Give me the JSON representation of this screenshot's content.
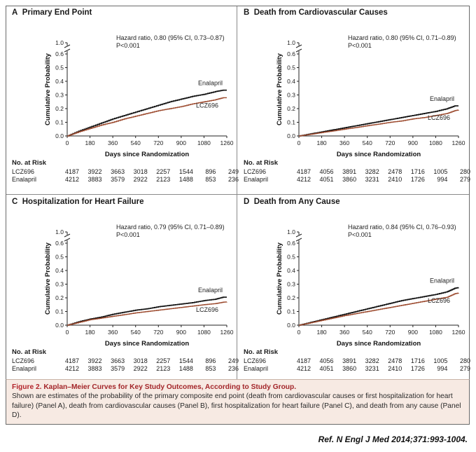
{
  "colors": {
    "enalapril": "#111111",
    "lcz696": "#9c4a2e",
    "caption_bg": "#f7eae3",
    "caption_title": "#b3242b"
  },
  "axes": {
    "ylabel": "Cumulative Probability",
    "xlabel": "Days since Randomization",
    "xticks": [
      "0",
      "180",
      "360",
      "540",
      "720",
      "900",
      "1080",
      "1260"
    ],
    "yticks": [
      "0.0",
      "0.1",
      "0.2",
      "0.3",
      "0.4",
      "0.5",
      "0.6",
      "1.0"
    ]
  },
  "risk_table": {
    "title": "No. at Risk",
    "rows": [
      "LCZ696",
      "Enalapril"
    ]
  },
  "panels": [
    {
      "letter": "A",
      "title": "Primary End Point",
      "hr_line1": "Hazard ratio, 0.80 (95% CI, 0.73–0.87)",
      "hr_line2": "P<0.001",
      "label_enalapril": "Enalapril",
      "label_lcz696": "LCZ696",
      "risk_lcz696": [
        "4187",
        "3922",
        "3663",
        "3018",
        "2257",
        "1544",
        "896",
        "249"
      ],
      "risk_enalapril": [
        "4212",
        "3883",
        "3579",
        "2922",
        "2123",
        "1488",
        "853",
        "236"
      ]
    },
    {
      "letter": "B",
      "title": "Death from Cardiovascular Causes",
      "hr_line1": "Hazard ratio, 0.80 (95% CI, 0.71–0.89)",
      "hr_line2": "P<0.001",
      "label_enalapril": "Enalapril",
      "label_lcz696": "LCZ696",
      "risk_lcz696": [
        "4187",
        "4056",
        "3891",
        "3282",
        "2478",
        "1716",
        "1005",
        "280"
      ],
      "risk_enalapril": [
        "4212",
        "4051",
        "3860",
        "3231",
        "2410",
        "1726",
        "994",
        "279"
      ]
    },
    {
      "letter": "C",
      "title": "Hospitalization for Heart Failure",
      "hr_line1": "Hazard ratio, 0.79 (95% CI, 0.71–0.89)",
      "hr_line2": "P<0.001",
      "label_enalapril": "Enalapril",
      "label_lcz696": "LCZ696",
      "risk_lcz696": [
        "4187",
        "3922",
        "3663",
        "3018",
        "2257",
        "1544",
        "896",
        "249"
      ],
      "risk_enalapril": [
        "4212",
        "3883",
        "3579",
        "2922",
        "2123",
        "1488",
        "853",
        "236"
      ]
    },
    {
      "letter": "D",
      "title": "Death from Any Cause",
      "hr_line1": "Hazard ratio, 0.84 (95% CI, 0.76–0.93)",
      "hr_line2": "P<0.001",
      "label_enalapril": "Enalapril",
      "label_lcz696": "LCZ696",
      "risk_lcz696": [
        "4187",
        "4056",
        "3891",
        "3282",
        "2478",
        "1716",
        "1005",
        "280"
      ],
      "risk_enalapril": [
        "4212",
        "4051",
        "3860",
        "3231",
        "2410",
        "1726",
        "994",
        "279"
      ]
    }
  ],
  "chart_data": [
    {
      "type": "line",
      "title": "A Primary End Point",
      "xlabel": "Days since Randomization",
      "ylabel": "Cumulative Probability",
      "xlim": [
        0,
        1260
      ],
      "ylim": [
        0,
        0.6
      ],
      "y_axis_break": true,
      "y_top_tick": 1.0,
      "x": [
        0,
        90,
        180,
        270,
        360,
        450,
        540,
        630,
        720,
        810,
        900,
        990,
        1080,
        1170,
        1230,
        1260
      ],
      "series": [
        {
          "name": "Enalapril",
          "values": [
            0,
            0.035,
            0.065,
            0.095,
            0.125,
            0.15,
            0.175,
            0.2,
            0.225,
            0.25,
            0.27,
            0.29,
            0.305,
            0.325,
            0.335,
            0.335
          ]
        },
        {
          "name": "LCZ696",
          "values": [
            0,
            0.03,
            0.055,
            0.08,
            0.1,
            0.125,
            0.145,
            0.165,
            0.185,
            0.2,
            0.215,
            0.235,
            0.25,
            0.265,
            0.28,
            0.28
          ]
        }
      ]
    },
    {
      "type": "line",
      "title": "B Death from Cardiovascular Causes",
      "xlabel": "Days since Randomization",
      "ylabel": "Cumulative Probability",
      "xlim": [
        0,
        1260
      ],
      "ylim": [
        0,
        0.6
      ],
      "y_axis_break": true,
      "y_top_tick": 1.0,
      "x": [
        0,
        90,
        180,
        270,
        360,
        450,
        540,
        630,
        720,
        810,
        900,
        990,
        1080,
        1170,
        1230,
        1260
      ],
      "series": [
        {
          "name": "Enalapril",
          "values": [
            0,
            0.015,
            0.03,
            0.045,
            0.06,
            0.075,
            0.09,
            0.105,
            0.12,
            0.135,
            0.15,
            0.165,
            0.18,
            0.2,
            0.22,
            0.22
          ]
        },
        {
          "name": "LCZ696",
          "values": [
            0,
            0.012,
            0.025,
            0.037,
            0.05,
            0.062,
            0.075,
            0.087,
            0.1,
            0.11,
            0.125,
            0.135,
            0.15,
            0.165,
            0.185,
            0.19
          ]
        }
      ]
    },
    {
      "type": "line",
      "title": "C Hospitalization for Heart Failure",
      "xlabel": "Days since Randomization",
      "ylabel": "Cumulative Probability",
      "xlim": [
        0,
        1260
      ],
      "ylim": [
        0,
        0.6
      ],
      "y_axis_break": true,
      "y_top_tick": 1.0,
      "x": [
        0,
        90,
        180,
        270,
        360,
        450,
        540,
        630,
        720,
        810,
        900,
        990,
        1080,
        1170,
        1230,
        1260
      ],
      "series": [
        {
          "name": "Enalapril",
          "values": [
            0,
            0.025,
            0.045,
            0.06,
            0.08,
            0.095,
            0.11,
            0.12,
            0.135,
            0.145,
            0.155,
            0.165,
            0.18,
            0.19,
            0.205,
            0.205
          ]
        },
        {
          "name": "LCZ696",
          "values": [
            0,
            0.02,
            0.04,
            0.052,
            0.065,
            0.077,
            0.09,
            0.1,
            0.11,
            0.12,
            0.13,
            0.14,
            0.15,
            0.158,
            0.168,
            0.17
          ]
        }
      ]
    },
    {
      "type": "line",
      "title": "D Death from Any Cause",
      "xlabel": "Days since Randomization",
      "ylabel": "Cumulative Probability",
      "xlim": [
        0,
        1260
      ],
      "ylim": [
        0,
        0.6
      ],
      "y_axis_break": true,
      "y_top_tick": 1.0,
      "x": [
        0,
        90,
        180,
        270,
        360,
        450,
        540,
        630,
        720,
        810,
        900,
        990,
        1080,
        1170,
        1230,
        1260
      ],
      "series": [
        {
          "name": "Enalapril",
          "values": [
            0,
            0.02,
            0.04,
            0.06,
            0.08,
            0.1,
            0.12,
            0.14,
            0.16,
            0.18,
            0.195,
            0.21,
            0.225,
            0.245,
            0.27,
            0.275
          ]
        },
        {
          "name": "LCZ696",
          "values": [
            0,
            0.017,
            0.035,
            0.052,
            0.07,
            0.085,
            0.1,
            0.115,
            0.13,
            0.145,
            0.16,
            0.175,
            0.19,
            0.205,
            0.23,
            0.235
          ]
        }
      ]
    }
  ],
  "caption": {
    "figure_number": "Figure 2.",
    "title": "Kaplan–Meier Curves for Key Study Outcomes, According to Study Group.",
    "text": "Shown are estimates of the probability of the primary composite end point (death from cardiovascular causes or first hospitalization for heart failure) (Panel A), death from cardiovascular causes (Panel B), first hospitalization for heart failure (Panel C), and death from any cause (Panel D)."
  },
  "reference": "Ref. N Engl J Med 2014;371:993-1004."
}
